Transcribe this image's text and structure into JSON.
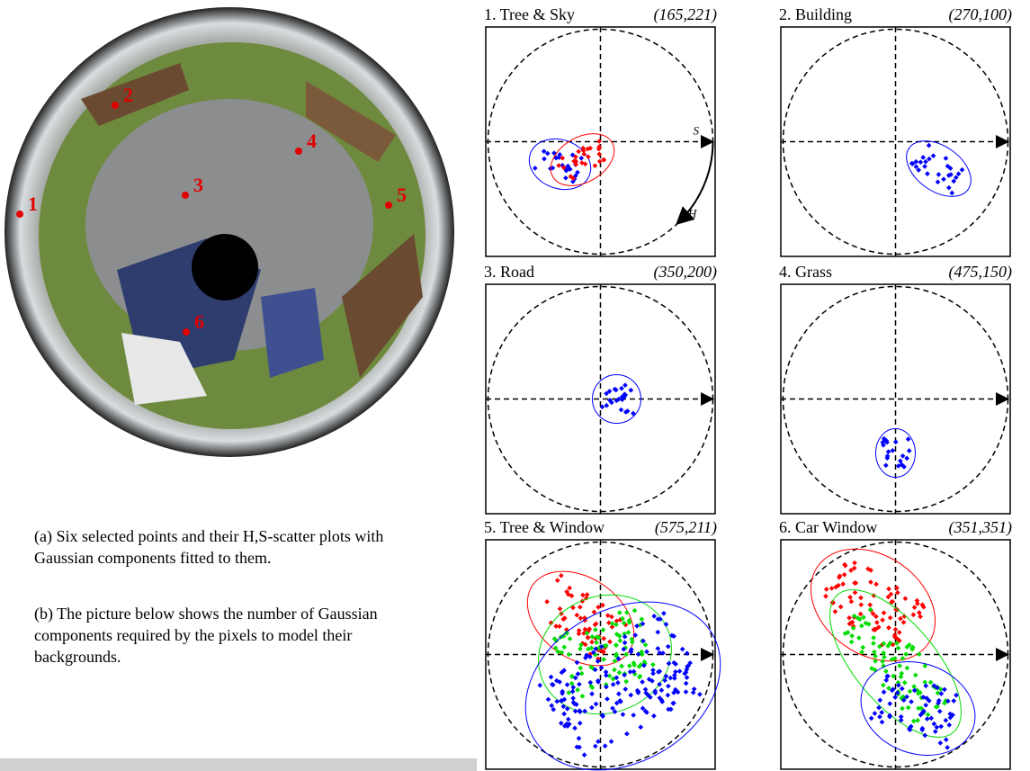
{
  "image_points": [
    {
      "label": "1"
    },
    {
      "label": "2"
    },
    {
      "label": "3"
    },
    {
      "label": "4"
    },
    {
      "label": "5"
    },
    {
      "label": "6"
    }
  ],
  "panels": [
    {
      "title": "1. Tree & Sky",
      "coords": "(165,221)"
    },
    {
      "title": "2. Building",
      "coords": "(270,100)"
    },
    {
      "title": "3. Road",
      "coords": "(350,200)"
    },
    {
      "title": "4. Grass",
      "coords": "(475,150)"
    },
    {
      "title": "5. Tree & Window",
      "coords": "(575,211)"
    },
    {
      "title": "6. Car Window",
      "coords": "(351,351)"
    }
  ],
  "axis_labels": {
    "s": "S",
    "h": "H"
  },
  "captions": [
    "(a) Six selected points and their H,S-scatter plots with Gaussian components fitted to them.",
    "(b) The picture below shows the number of Gaussian components required by the pixels to model their backgrounds."
  ]
}
